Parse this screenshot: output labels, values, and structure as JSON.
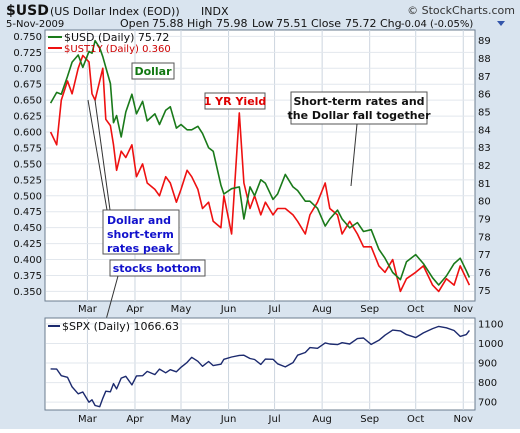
{
  "header": {
    "symbol": "$USD",
    "description": "(US Dollar Index (EOD))",
    "exchange": "INDX",
    "copyright": "© StockCharts.com",
    "date": "5-Nov-2009",
    "open_label": "Open",
    "open": "75.88",
    "high_label": "High",
    "high": "75.98",
    "low_label": "Low",
    "low": "75.51",
    "close_label": "Close",
    "close": "75.72",
    "chg_label": "Chg",
    "chg": "-0.04 (-0.05%)"
  },
  "legend": {
    "usd": "$USD (Daily) 75.72",
    "ust": "$UST1Y (Daily) 0.360",
    "spx": "$SPX (Daily) 1066.63"
  },
  "annotations": {
    "dollar": "Dollar",
    "yield": "1 YR Yield",
    "short_term_1": "Short-term rates and",
    "short_term_2": "the Dollar fall together",
    "peak_1": "Dollar and",
    "peak_2": "short-term",
    "peak_3": "rates peak",
    "stocks": "stocks bottom"
  },
  "colors": {
    "usd": "#1a7a1a",
    "ust": "#ee1111",
    "spx": "#1c2a6e",
    "frame_bg": "#d8e3ef",
    "grid": "#c6cfd9",
    "annotation_blue": "#1111cc",
    "annotation_red": "#dd0000",
    "annotation_green": "#117711"
  },
  "chart_data": [
    {
      "type": "line",
      "title": "$USD (US Dollar Index (EOD)) INDX",
      "x_ticks": [
        "Mar",
        "Apr",
        "May",
        "Jun",
        "Jul",
        "Aug",
        "Sep",
        "Oct",
        "Nov"
      ],
      "y_left_ticks": [
        "0.750",
        "0.725",
        "0.700",
        "0.675",
        "0.650",
        "0.625",
        "0.600",
        "0.575",
        "0.550",
        "0.525",
        "0.500",
        "0.475",
        "0.450",
        "0.425",
        "0.400",
        "0.375",
        "0.350"
      ],
      "y_right_ticks": [
        "89",
        "88",
        "87",
        "86",
        "85",
        "84",
        "83",
        "82",
        "81",
        "80",
        "79",
        "78",
        "77",
        "76",
        "75"
      ],
      "ylim_left": [
        0.335,
        0.76
      ],
      "ylim_right": [
        74.4,
        89.6
      ],
      "grid": true,
      "legend_position": "top-left",
      "series": [
        {
          "name": "$USD (Daily) 75.72",
          "axis": "right",
          "x": [
            "2009-02-05",
            "2009-02-09",
            "2009-02-12",
            "2009-02-16",
            "2009-02-19",
            "2009-02-23",
            "2009-02-26",
            "2009-03-02",
            "2009-03-04",
            "2009-03-06",
            "2009-03-09",
            "2009-03-11",
            "2009-03-13",
            "2009-03-16",
            "2009-03-18",
            "2009-03-20",
            "2009-03-23",
            "2009-03-26",
            "2009-03-30",
            "2009-04-02",
            "2009-04-06",
            "2009-04-09",
            "2009-04-14",
            "2009-04-17",
            "2009-04-21",
            "2009-04-24",
            "2009-04-28",
            "2009-05-01",
            "2009-05-05",
            "2009-05-08",
            "2009-05-12",
            "2009-05-15",
            "2009-05-19",
            "2009-05-22",
            "2009-05-27",
            "2009-05-29",
            "2009-06-03",
            "2009-06-08",
            "2009-06-11",
            "2009-06-15",
            "2009-06-18",
            "2009-06-22",
            "2009-06-25",
            "2009-06-30",
            "2009-07-03",
            "2009-07-08",
            "2009-07-13",
            "2009-07-16",
            "2009-07-21",
            "2009-07-24",
            "2009-07-29",
            "2009-08-03",
            "2009-08-06",
            "2009-08-11",
            "2009-08-14",
            "2009-08-19",
            "2009-08-24",
            "2009-08-28",
            "2009-09-02",
            "2009-09-07",
            "2009-09-11",
            "2009-09-16",
            "2009-09-21",
            "2009-09-25",
            "2009-10-01",
            "2009-10-06",
            "2009-10-12",
            "2009-10-16",
            "2009-10-21",
            "2009-10-26",
            "2009-10-30",
            "2009-11-03",
            "2009-11-05"
          ],
          "values": [
            85.5,
            86.1,
            86.0,
            87.0,
            87.8,
            88.2,
            87.5,
            88.4,
            88.3,
            89.0,
            88.6,
            88.1,
            87.5,
            86.6,
            84.4,
            84.8,
            83.6,
            85.0,
            86.0,
            84.9,
            85.6,
            84.5,
            84.9,
            84.3,
            85.1,
            85.3,
            84.1,
            84.3,
            84.0,
            84.0,
            84.2,
            83.8,
            83.0,
            82.8,
            80.9,
            80.4,
            80.7,
            80.8,
            79.0,
            80.8,
            80.3,
            81.2,
            81.0,
            80.1,
            80.4,
            81.5,
            80.8,
            80.6,
            80.0,
            80.0,
            79.6,
            78.6,
            79.0,
            79.5,
            79.0,
            78.5,
            78.8,
            78.3,
            78.4,
            77.3,
            76.8,
            76.0,
            75.6,
            76.6,
            77.0,
            76.5,
            75.7,
            75.3,
            75.8,
            76.5,
            76.8,
            76.1,
            75.72
          ]
        },
        {
          "name": "$UST1Y (Daily) 0.360",
          "axis": "left",
          "x": [
            "2009-02-05",
            "2009-02-09",
            "2009-02-12",
            "2009-02-16",
            "2009-02-19",
            "2009-02-23",
            "2009-02-26",
            "2009-03-02",
            "2009-03-04",
            "2009-03-06",
            "2009-03-09",
            "2009-03-11",
            "2009-03-13",
            "2009-03-16",
            "2009-03-18",
            "2009-03-20",
            "2009-03-23",
            "2009-03-26",
            "2009-03-30",
            "2009-04-02",
            "2009-04-06",
            "2009-04-09",
            "2009-04-14",
            "2009-04-17",
            "2009-04-21",
            "2009-04-24",
            "2009-04-28",
            "2009-05-01",
            "2009-05-05",
            "2009-05-08",
            "2009-05-12",
            "2009-05-15",
            "2009-05-19",
            "2009-05-22",
            "2009-05-27",
            "2009-05-29",
            "2009-06-03",
            "2009-06-08",
            "2009-06-11",
            "2009-06-15",
            "2009-06-18",
            "2009-06-22",
            "2009-06-25",
            "2009-06-30",
            "2009-07-03",
            "2009-07-08",
            "2009-07-13",
            "2009-07-16",
            "2009-07-21",
            "2009-07-24",
            "2009-07-29",
            "2009-08-03",
            "2009-08-06",
            "2009-08-11",
            "2009-08-14",
            "2009-08-19",
            "2009-08-24",
            "2009-08-28",
            "2009-09-02",
            "2009-09-07",
            "2009-09-11",
            "2009-09-16",
            "2009-09-21",
            "2009-09-25",
            "2009-10-01",
            "2009-10-06",
            "2009-10-12",
            "2009-10-16",
            "2009-10-21",
            "2009-10-26",
            "2009-10-30",
            "2009-11-03",
            "2009-11-05"
          ],
          "values": [
            0.6,
            0.58,
            0.65,
            0.68,
            0.66,
            0.7,
            0.72,
            0.71,
            0.66,
            0.65,
            0.68,
            0.7,
            0.62,
            0.61,
            0.58,
            0.54,
            0.57,
            0.56,
            0.58,
            0.53,
            0.55,
            0.52,
            0.51,
            0.5,
            0.53,
            0.52,
            0.49,
            0.51,
            0.54,
            0.53,
            0.51,
            0.48,
            0.49,
            0.46,
            0.45,
            0.5,
            0.44,
            0.63,
            0.52,
            0.48,
            0.5,
            0.47,
            0.49,
            0.47,
            0.48,
            0.48,
            0.47,
            0.46,
            0.44,
            0.47,
            0.49,
            0.52,
            0.48,
            0.47,
            0.44,
            0.46,
            0.44,
            0.42,
            0.42,
            0.39,
            0.38,
            0.4,
            0.35,
            0.37,
            0.38,
            0.39,
            0.36,
            0.35,
            0.37,
            0.36,
            0.39,
            0.37,
            0.36
          ]
        }
      ]
    },
    {
      "type": "line",
      "title": "$SPX (Daily) 1066.63",
      "x_ticks": [
        "Mar",
        "Apr",
        "May",
        "Jun",
        "Jul",
        "Aug",
        "Sep",
        "Oct",
        "Nov"
      ],
      "y_right_ticks": [
        "1100",
        "1000",
        "900",
        "800",
        "700"
      ],
      "ylim": [
        660,
        1130
      ],
      "grid": true,
      "series": [
        {
          "name": "$SPX (Daily) 1066.63",
          "x": [
            "2009-02-05",
            "2009-02-09",
            "2009-02-12",
            "2009-02-16",
            "2009-02-19",
            "2009-02-23",
            "2009-02-26",
            "2009-03-02",
            "2009-03-04",
            "2009-03-06",
            "2009-03-09",
            "2009-03-11",
            "2009-03-13",
            "2009-03-16",
            "2009-03-18",
            "2009-03-20",
            "2009-03-23",
            "2009-03-26",
            "2009-03-30",
            "2009-04-02",
            "2009-04-06",
            "2009-04-09",
            "2009-04-14",
            "2009-04-17",
            "2009-04-21",
            "2009-04-24",
            "2009-04-28",
            "2009-05-01",
            "2009-05-05",
            "2009-05-08",
            "2009-05-12",
            "2009-05-15",
            "2009-05-19",
            "2009-05-22",
            "2009-05-27",
            "2009-05-29",
            "2009-06-03",
            "2009-06-08",
            "2009-06-11",
            "2009-06-15",
            "2009-06-18",
            "2009-06-22",
            "2009-06-25",
            "2009-06-30",
            "2009-07-03",
            "2009-07-08",
            "2009-07-13",
            "2009-07-16",
            "2009-07-21",
            "2009-07-24",
            "2009-07-29",
            "2009-08-03",
            "2009-08-06",
            "2009-08-11",
            "2009-08-14",
            "2009-08-19",
            "2009-08-24",
            "2009-08-28",
            "2009-09-02",
            "2009-09-07",
            "2009-09-11",
            "2009-09-16",
            "2009-09-21",
            "2009-09-25",
            "2009-10-01",
            "2009-10-06",
            "2009-10-12",
            "2009-10-16",
            "2009-10-21",
            "2009-10-26",
            "2009-10-30",
            "2009-11-03",
            "2009-11-05"
          ],
          "values": [
            870,
            869,
            835,
            827,
            778,
            743,
            752,
            700,
            712,
            683,
            677,
            720,
            756,
            753,
            795,
            768,
            823,
            832,
            788,
            834,
            835,
            857,
            841,
            869,
            850,
            866,
            855,
            878,
            903,
            929,
            909,
            883,
            908,
            887,
            894,
            919,
            931,
            939,
            940,
            923,
            918,
            893,
            920,
            919,
            896,
            880,
            902,
            940,
            954,
            979,
            975,
            1003,
            997,
            994,
            1004,
            997,
            1025,
            1028,
            995,
            1016,
            1042,
            1068,
            1064,
            1045,
            1030,
            1054,
            1076,
            1087,
            1080,
            1066,
            1036,
            1045,
            1066.63
          ]
        }
      ]
    }
  ]
}
